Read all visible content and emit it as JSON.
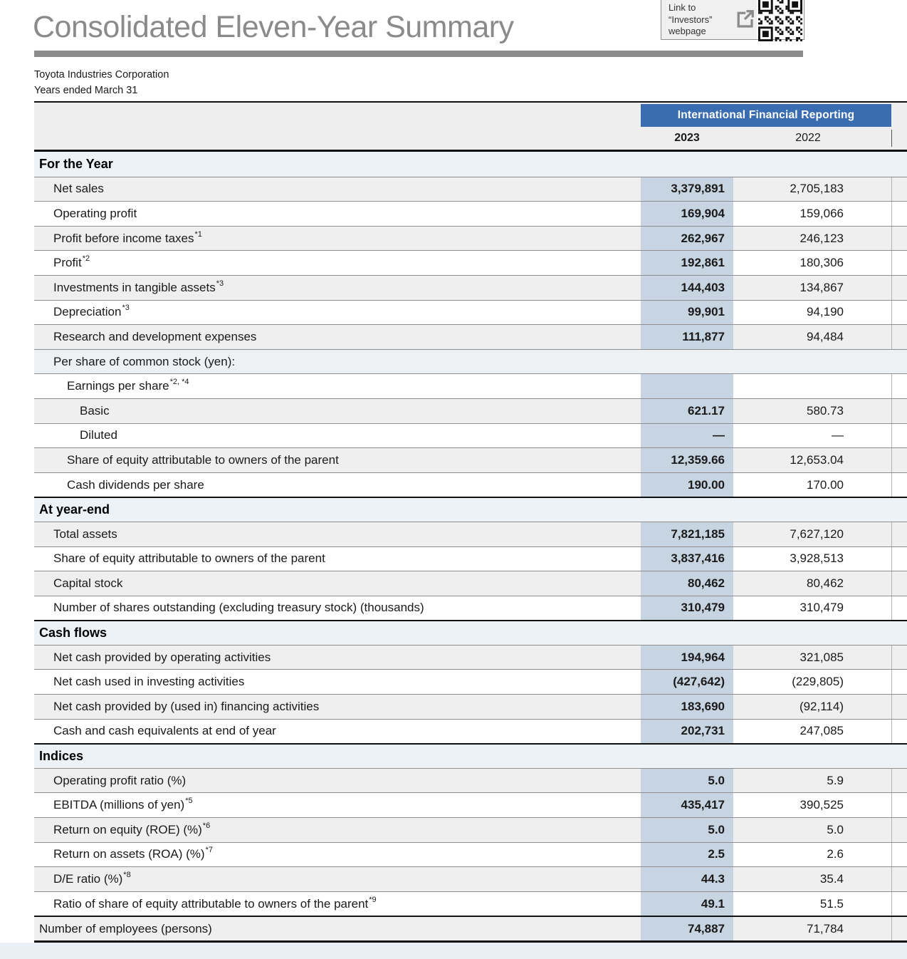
{
  "header": {
    "title": "Consolidated Eleven-Year Summary",
    "company": "Toyota Industries Corporation",
    "period": "Years ended March 31"
  },
  "link_box": {
    "line1": "Link to",
    "line2": "“Investors”",
    "line3": "webpage"
  },
  "colors": {
    "accent_blue": "#3a6cb1",
    "column_highlight": "#c7d4e1",
    "section_band": "#edf2f6",
    "row_gray": "#efefef",
    "bottom_band": "#e9eff5"
  },
  "table": {
    "group_header": "International Financial Reporting",
    "years": [
      "2023",
      "2022"
    ],
    "rows": [
      {
        "t": "section",
        "indent": 0,
        "label": "For the Year"
      },
      {
        "t": "data",
        "indent": 1,
        "label": "Net sales",
        "y23": "3,379,891",
        "y22": "2,705,183"
      },
      {
        "t": "data",
        "indent": 1,
        "label": "Operating profit",
        "y23": "169,904",
        "y22": "159,066"
      },
      {
        "t": "data",
        "indent": 1,
        "label": "Profit before income taxes",
        "sup": "*1",
        "y23": "262,967",
        "y22": "246,123"
      },
      {
        "t": "data",
        "indent": 1,
        "label": "Profit",
        "sup": "*2",
        "y23": "192,861",
        "y22": "180,306"
      },
      {
        "t": "data",
        "indent": 1,
        "label": "Investments in tangible assets",
        "sup": "*3",
        "y23": "144,403",
        "y22": "134,867"
      },
      {
        "t": "data",
        "indent": 1,
        "label": "Depreciation",
        "sup": "*3",
        "y23": "99,901",
        "y22": "94,190"
      },
      {
        "t": "data",
        "indent": 1,
        "label": "Research and development expenses",
        "y23": "111,877",
        "y22": "94,484"
      },
      {
        "t": "sub",
        "indent": 1,
        "label": "Per share of common stock (yen):"
      },
      {
        "t": "data",
        "indent": 2,
        "label": "Earnings per share",
        "sup": "*2, *4",
        "y23": "",
        "y22": ""
      },
      {
        "t": "data",
        "indent": 3,
        "label": "Basic",
        "y23": "621.17",
        "y22": "580.73"
      },
      {
        "t": "data",
        "indent": 3,
        "label": "Diluted",
        "y23": "—",
        "y22": "—"
      },
      {
        "t": "data",
        "indent": 2,
        "label": "Share of equity attributable to owners of the parent",
        "y23": "12,359.66",
        "y22": "12,653.04"
      },
      {
        "t": "data",
        "indent": 2,
        "label": "Cash dividends per share",
        "y23": "190.00",
        "y22": "170.00"
      },
      {
        "t": "section",
        "indent": 0,
        "label": "At year-end"
      },
      {
        "t": "data",
        "indent": 1,
        "label": "Total assets",
        "y23": "7,821,185",
        "y22": "7,627,120"
      },
      {
        "t": "data",
        "indent": 1,
        "label": "Share of equity attributable to owners of the parent",
        "y23": "3,837,416",
        "y22": "3,928,513"
      },
      {
        "t": "data",
        "indent": 1,
        "label": "Capital stock",
        "y23": "80,462",
        "y22": "80,462"
      },
      {
        "t": "data",
        "indent": 1,
        "label": "Number of shares outstanding (excluding treasury stock) (thousands)",
        "y23": "310,479",
        "y22": "310,479"
      },
      {
        "t": "section",
        "indent": 0,
        "label": "Cash flows"
      },
      {
        "t": "data",
        "indent": 1,
        "label": "Net cash provided by operating activities",
        "y23": "194,964",
        "y22": "321,085"
      },
      {
        "t": "data",
        "indent": 1,
        "label": "Net cash used in investing activities",
        "y23": "(427,642)",
        "y22": "(229,805)"
      },
      {
        "t": "data",
        "indent": 1,
        "label": "Net cash provided by (used in) financing activities",
        "y23": "183,690",
        "y22": "(92,114)"
      },
      {
        "t": "data",
        "indent": 1,
        "label": "Cash and cash equivalents at end of year",
        "y23": "202,731",
        "y22": "247,085"
      },
      {
        "t": "section",
        "indent": 0,
        "label": "Indices"
      },
      {
        "t": "data",
        "indent": 1,
        "label": "Operating profit ratio (%)",
        "y23": "5.0",
        "y22": "5.9"
      },
      {
        "t": "data",
        "indent": 1,
        "label": "EBITDA (millions of yen)",
        "sup": "*5",
        "y23": "435,417",
        "y22": "390,525"
      },
      {
        "t": "data",
        "indent": 1,
        "label": "Return on equity (ROE) (%)",
        "sup": "*6",
        "y23": "5.0",
        "y22": "5.0"
      },
      {
        "t": "data",
        "indent": 1,
        "label": "Return on assets (ROA) (%)",
        "sup": "*7",
        "y23": "2.5",
        "y22": "2.6"
      },
      {
        "t": "data",
        "indent": 1,
        "label": "D/E ratio (%)",
        "sup": "*8",
        "y23": "44.3",
        "y22": "35.4"
      },
      {
        "t": "data",
        "indent": 1,
        "label": "Ratio of share of equity attributable to owners of the parent",
        "sup": "*9",
        "y23": "49.1",
        "y22": "51.5"
      },
      {
        "t": "total",
        "indent": 0,
        "label": "Number of employees (persons)",
        "y23": "74,887",
        "y22": "71,784"
      }
    ]
  }
}
